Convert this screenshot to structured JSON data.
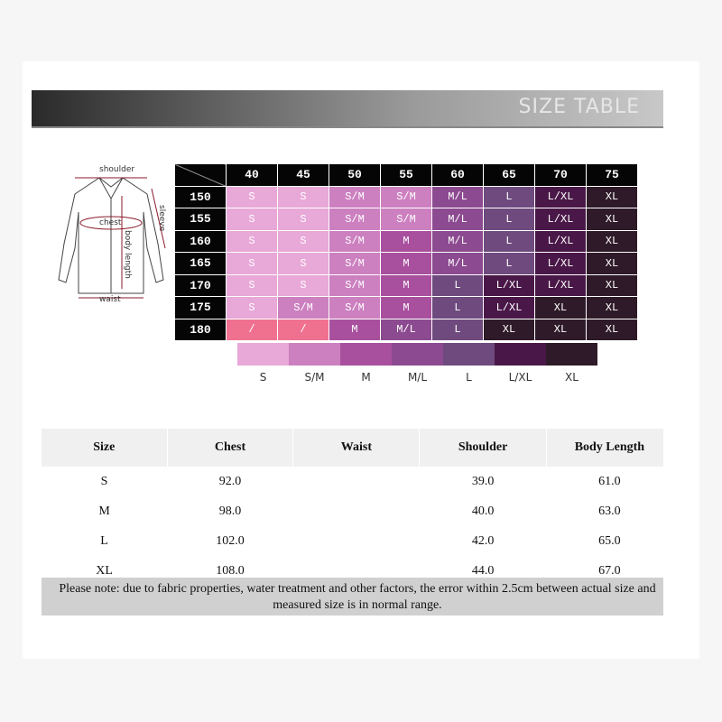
{
  "header": {
    "title": "SIZE TABLE"
  },
  "diagram": {
    "labels": [
      "shoulder",
      "chest",
      "sleeve",
      "body length",
      "waist"
    ]
  },
  "size_grid": {
    "columns": [
      "40",
      "45",
      "50",
      "55",
      "60",
      "65",
      "70",
      "75"
    ],
    "rows": [
      {
        "label": "150",
        "cells": [
          "S",
          "S",
          "S/M",
          "S/M",
          "M/L",
          "L",
          "L/XL",
          "XL"
        ]
      },
      {
        "label": "155",
        "cells": [
          "S",
          "S",
          "S/M",
          "S/M",
          "M/L",
          "L",
          "L/XL",
          "XL"
        ]
      },
      {
        "label": "160",
        "cells": [
          "S",
          "S",
          "S/M",
          "M",
          "M/L",
          "L",
          "L/XL",
          "XL"
        ]
      },
      {
        "label": "165",
        "cells": [
          "S",
          "S",
          "S/M",
          "M",
          "M/L",
          "L",
          "L/XL",
          "XL"
        ]
      },
      {
        "label": "170",
        "cells": [
          "S",
          "S",
          "S/M",
          "M",
          "L",
          "L/XL",
          "L/XL",
          "XL"
        ]
      },
      {
        "label": "175",
        "cells": [
          "S",
          "S/M",
          "S/M",
          "M",
          "L",
          "L/XL",
          "XL",
          "XL"
        ]
      },
      {
        "label": "180",
        "cells": [
          "/",
          "/",
          "M",
          "M/L",
          "L",
          "XL",
          "XL",
          "XL"
        ]
      }
    ],
    "legend": [
      {
        "label": "S",
        "color": "#e8a8d8"
      },
      {
        "label": "S/M",
        "color": "#cc80c0"
      },
      {
        "label": "M",
        "color": "#a8509e"
      },
      {
        "label": "M/L",
        "color": "#8c4a90"
      },
      {
        "label": "L",
        "color": "#6e4a7e"
      },
      {
        "label": "L/XL",
        "color": "#4a1848"
      },
      {
        "label": "XL",
        "color": "#2e1a28"
      }
    ]
  },
  "table": {
    "headers": [
      "Size",
      "Chest",
      "Waist",
      "Shoulder",
      "Body Length"
    ],
    "rows": [
      {
        "size": "S",
        "chest": "92.0",
        "shoulder": "39.0",
        "body_length": "61.0"
      },
      {
        "size": "M",
        "chest": "98.0",
        "shoulder": "40.0",
        "body_length": "63.0"
      },
      {
        "size": "L",
        "chest": "102.0",
        "shoulder": "42.0",
        "body_length": "65.0"
      },
      {
        "size": "XL",
        "chest": "108.0",
        "shoulder": "44.0",
        "body_length": "67.0"
      }
    ],
    "note": "Please note: due to fabric properties, water treatment and other factors, the error within 2.5cm between actual size and measured size is in normal range."
  }
}
